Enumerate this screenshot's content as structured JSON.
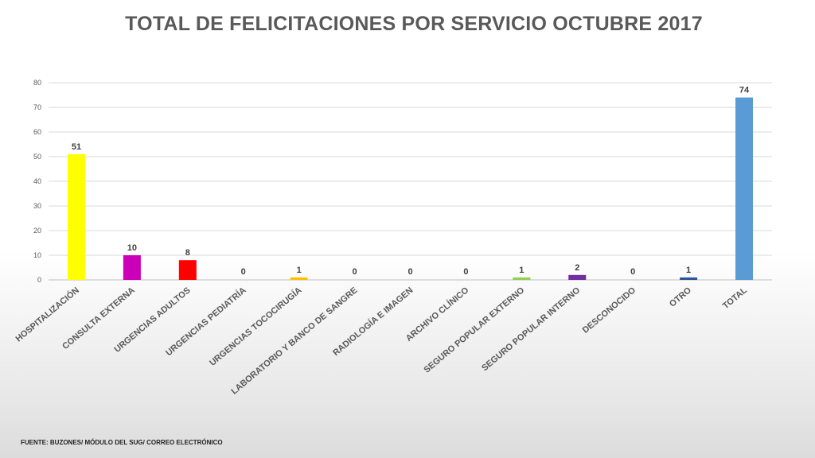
{
  "title": "TOTAL DE FELICITACIONES POR SERVICIO OCTUBRE 2017",
  "footer": "FUENTE: BUZONES/ MÓDULO DEL SUG/ CORREO ELECTRÓNICO",
  "chart_data": {
    "type": "bar",
    "title": "TOTAL DE FELICITACIONES POR SERVICIO OCTUBRE 2017",
    "xlabel": "",
    "ylabel": "",
    "ylim": [
      0,
      80
    ],
    "yticks": [
      0,
      10,
      20,
      30,
      40,
      50,
      60,
      70,
      80
    ],
    "grid": true,
    "legend": "none",
    "categories": [
      "HOSPITALIZACIÓN",
      "CONSULTA EXTERNA",
      "URGENCIAS ADULTOS",
      "URGENCIAS PEDIATRÍA",
      "URGENCIAS TOCOCIRUGÍA",
      "LABORATORIO Y BANCO DE SANGRE",
      "RADIOLOGÍA E IMAGEN",
      "ARCHIVO CLÍNICO",
      "SEGURO POPULAR EXTERNO",
      "SEGURO POPULAR INTERNO",
      "DESCONOCIDO",
      "OTRO",
      "TOTAL"
    ],
    "values": [
      51,
      10,
      8,
      0,
      1,
      0,
      0,
      0,
      1,
      2,
      0,
      1,
      74
    ],
    "colors": [
      "#ffff00",
      "#cc00b8",
      "#ff0000",
      "#a6a6a6",
      "#ffc000",
      "#a6a6a6",
      "#a6a6a6",
      "#a6a6a6",
      "#92d050",
      "#7030a0",
      "#a6a6a6",
      "#2f5597",
      "#5b9bd5"
    ]
  }
}
